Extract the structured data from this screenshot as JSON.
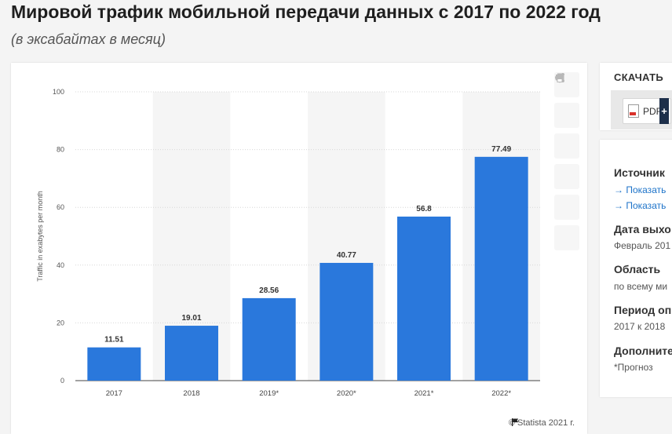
{
  "header": {
    "title": "Мировой трафик мобильной передачи данных с 2017 по 2022 год",
    "subtitle": "(в эксабайтах в месяц)"
  },
  "chart_data": {
    "type": "bar",
    "categories": [
      "2017",
      "2018",
      "2019*",
      "2020*",
      "2021*",
      "2022*"
    ],
    "values": [
      11.51,
      19.01,
      28.56,
      40.77,
      56.8,
      77.49
    ],
    "value_labels": [
      "11.51",
      "19.01",
      "28.56",
      "40.77",
      "56.8",
      "77.49"
    ],
    "ylabel": "Traffic in exabytes per month",
    "ylim": [
      0,
      100
    ],
    "yticks": [
      0,
      20,
      40,
      60,
      80,
      100
    ],
    "grid": true,
    "bar_color": "#2a78dc",
    "alt_band_color": "#f5f5f5"
  },
  "toolbar": {
    "icons": [
      "star-icon",
      "bell-icon",
      "gear-icon",
      "share-icon",
      "quote-icon",
      "print-icon"
    ]
  },
  "credit": "© Statista 2021 г.",
  "download": {
    "title": "СКАЧАТЬ",
    "pdf_label": "PDF",
    "plus_label": "+"
  },
  "info": {
    "source_title": "Источник",
    "show_link_1": "→ Показать",
    "show_link_2": "→ Показать",
    "release_title": "Дата выхо",
    "release_value": "Февраль 201",
    "region_title": "Область",
    "region_value": "по всему ми",
    "period_title": "Период оп",
    "period_value": "2017 к 2018",
    "extra_title": "Дополните",
    "extra_value": "*Прогноз"
  }
}
